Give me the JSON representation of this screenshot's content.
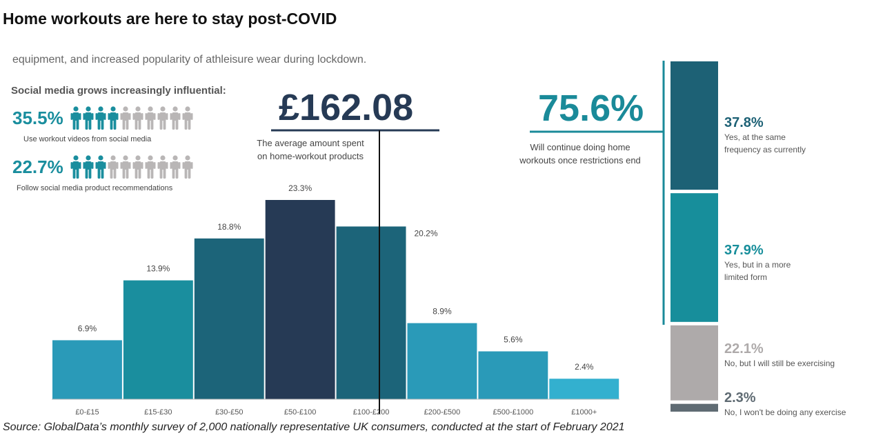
{
  "title": "Home workouts are here to stay post-COVID",
  "intro": "equipment, and increased popularity of athleisure wear during lockdown.",
  "social": {
    "heading": "Social media grows increasingly influential:",
    "stats": [
      {
        "value": "35.5%",
        "caption": "Use workout videos from social media",
        "filled_people": 4,
        "total_people": 10
      },
      {
        "value": "22.7%",
        "caption": "Follow social media product recommendations",
        "filled_people": 3,
        "total_people": 10
      }
    ]
  },
  "average_spend": {
    "value": "£162.08",
    "caption_line1": "The average amount spent",
    "caption_line2": "on home-workout products"
  },
  "continue_stat": {
    "value": "75.6%",
    "caption_line1": "Will continue doing home",
    "caption_line2": "workouts once restrictions end"
  },
  "stack": [
    {
      "value": "37.8%",
      "line1": "Yes, at the same",
      "line2": "frequency as currently",
      "color": "#1d6175",
      "text_color": "#1d6175"
    },
    {
      "value": "37.9%",
      "line1": "Yes, but in a more",
      "line2": "limited form",
      "color": "#178e9b",
      "text_color": "#178e9b"
    },
    {
      "value": "22.1%",
      "line1": "No, but I will still be exercising",
      "line2": "",
      "color": "#aeaaaa",
      "text_color": "#aeaaaa"
    },
    {
      "value": "2.3%",
      "line1": "No, I won't be doing any exercise",
      "line2": "",
      "color": "#5f6b73",
      "text_color": "#5f6b73"
    }
  ],
  "chart_data": {
    "type": "bar",
    "title": "",
    "xlabel": "",
    "ylabel": "",
    "ylim": [
      0,
      25
    ],
    "categories": [
      "£0-£15",
      "£15-£30",
      "£30-£50",
      "£50-£100",
      "£100-£200",
      "£200-£500",
      "£500-£1000",
      "£1000+"
    ],
    "values": [
      6.9,
      13.9,
      18.8,
      23.3,
      20.2,
      8.9,
      5.6,
      2.4
    ],
    "value_labels": [
      "6.9%",
      "13.9%",
      "18.8%",
      "23.3%",
      "20.2%",
      "8.9%",
      "5.6%",
      "2.4%"
    ],
    "colors": [
      "#2a9ab8",
      "#1a8e9e",
      "#1c6479",
      "#263a55",
      "#1c6479",
      "#2a9ab8",
      "#2a9ab8",
      "#33b0cf"
    ]
  },
  "source": "Source: GlobalData’s monthly survey of 2,000 nationally representative UK consumers, conducted at the start of February 2021"
}
